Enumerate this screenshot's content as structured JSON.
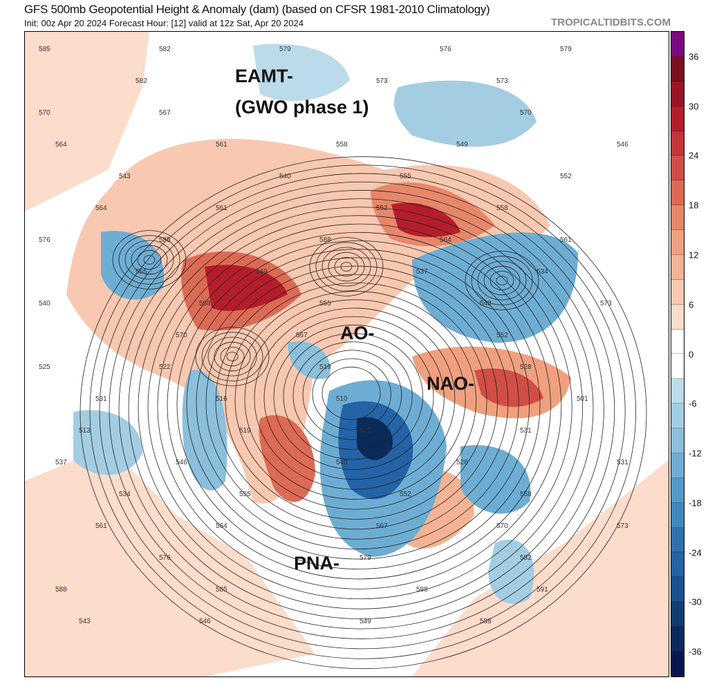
{
  "header": {
    "title": "GFS 500mb Geopotential Height & Anomaly (dam) (based on CFSR 1981-2010 Climatology)",
    "subtitle": "Init: 00z Apr 20 2024   Forecast Hour: [12]   valid at 12z Sat, Apr 20 2024",
    "brand": "TROPICALTIDBITS.COM"
  },
  "colorbar": {
    "labels": [
      "36",
      "30",
      "24",
      "18",
      "12",
      "6",
      "0",
      "-6",
      "-12",
      "-18",
      "-24",
      "-30",
      "-36"
    ],
    "colors": [
      "#7b0a7e",
      "#7a0f1e",
      "#9a1426",
      "#b51d2b",
      "#c53539",
      "#d04e45",
      "#dc6a55",
      "#e6876a",
      "#f0a07e",
      "#f4b394",
      "#f8c8b0",
      "#fcdcca",
      "#ffffff",
      "#ffffff",
      "#bcdbea",
      "#a3cde2",
      "#8bbfdb",
      "#6eadd3",
      "#5199c9",
      "#3f88be",
      "#2e72b0",
      "#2363a6",
      "#1a5190",
      "#103d72",
      "#0a2a5c",
      "#08164f"
    ]
  },
  "annotations": {
    "eamt": "EAMT-",
    "gwo": "(GWO phase 1)",
    "ao": "AO-",
    "nao": "NAO-",
    "pna": "PNA-"
  },
  "contour_labels": [
    "585",
    "582",
    "579",
    "576",
    "579",
    "582",
    "573",
    "573",
    "570",
    "567",
    "570",
    "564",
    "561",
    "558",
    "549",
    "546",
    "543",
    "540",
    "555",
    "552",
    "564",
    "561",
    "552",
    "558",
    "576",
    "585",
    "588",
    "564",
    "561",
    "555",
    "549",
    "537",
    "534",
    "540",
    "558",
    "555",
    "543",
    "573",
    "570",
    "567",
    "552",
    "525",
    "522",
    "519",
    "528",
    "531",
    "516",
    "510",
    "501",
    "513",
    "519",
    "522",
    "531",
    "537",
    "546",
    "540",
    "528",
    "531",
    "534",
    "555",
    "552",
    "558",
    "561",
    "564",
    "567",
    "570",
    "573",
    "576",
    "579",
    "582",
    "588",
    "585",
    "588",
    "591",
    "543",
    "546",
    "549",
    "588"
  ]
}
